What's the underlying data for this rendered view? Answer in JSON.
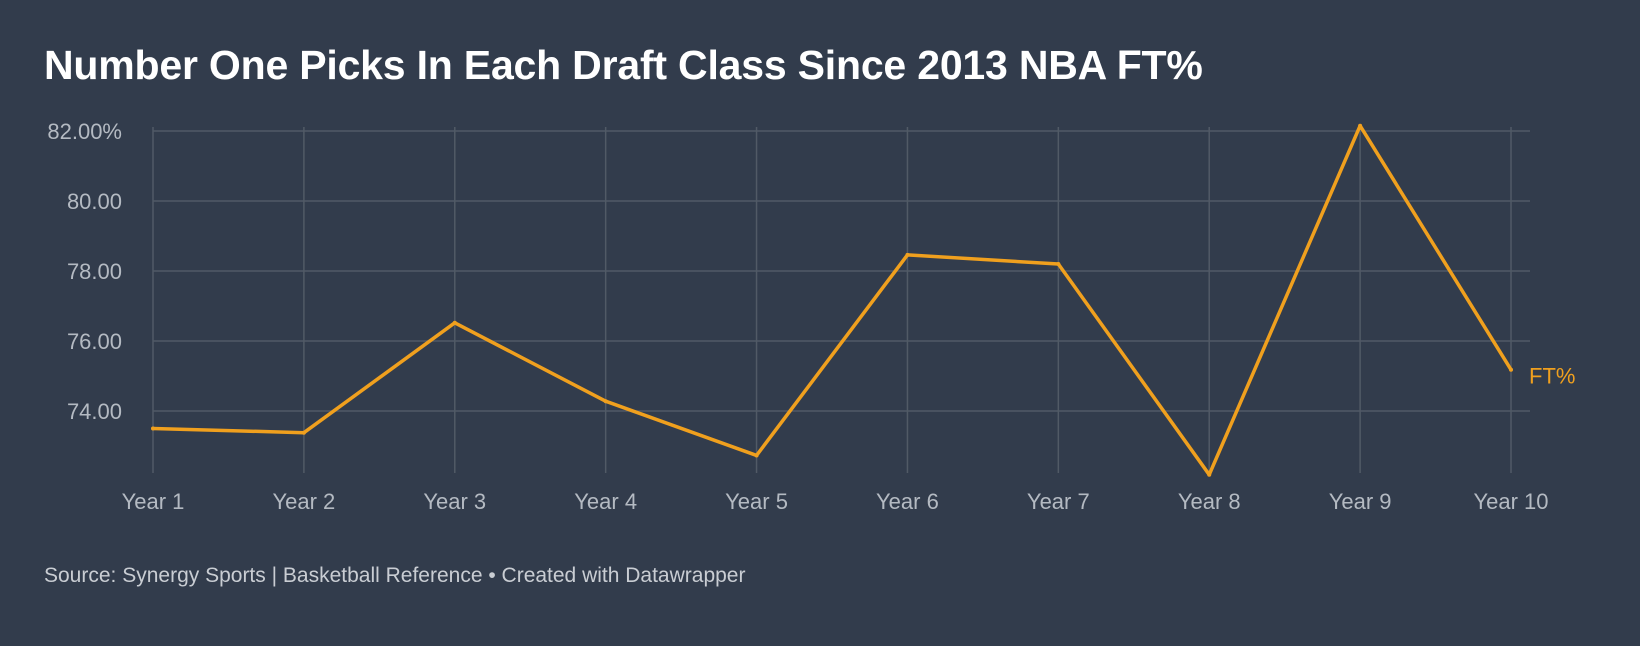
{
  "title": "Number One Picks In Each Draft Class Since 2013 NBA FT%",
  "footer": {
    "source": "Source: Synergy Sports | Basketball Reference • Created with Datawrapper"
  },
  "chart_data": {
    "type": "line",
    "categories": [
      "Year 1",
      "Year 2",
      "Year 3",
      "Year 4",
      "Year 5",
      "Year 6",
      "Year 7",
      "Year 8",
      "Year 9",
      "Year 10"
    ],
    "series": [
      {
        "name": "FT%",
        "values": [
          73.5,
          73.38,
          76.52,
          74.28,
          72.73,
          78.46,
          78.2,
          72.18,
          82.15,
          75.18
        ]
      }
    ],
    "yticks": [
      {
        "value": 82,
        "label": "82.00%"
      },
      {
        "value": 80,
        "label": "80.00"
      },
      {
        "value": 78,
        "label": "78.00"
      },
      {
        "value": 76,
        "label": "76.00"
      },
      {
        "value": 74,
        "label": "74.00"
      }
    ],
    "ylim": [
      72.1,
      82.15
    ],
    "grid": true,
    "colors": {
      "background": "#323c4c",
      "line": "#f0a01e",
      "grid": "#515a66",
      "axis_text": "#b4bac2"
    }
  }
}
